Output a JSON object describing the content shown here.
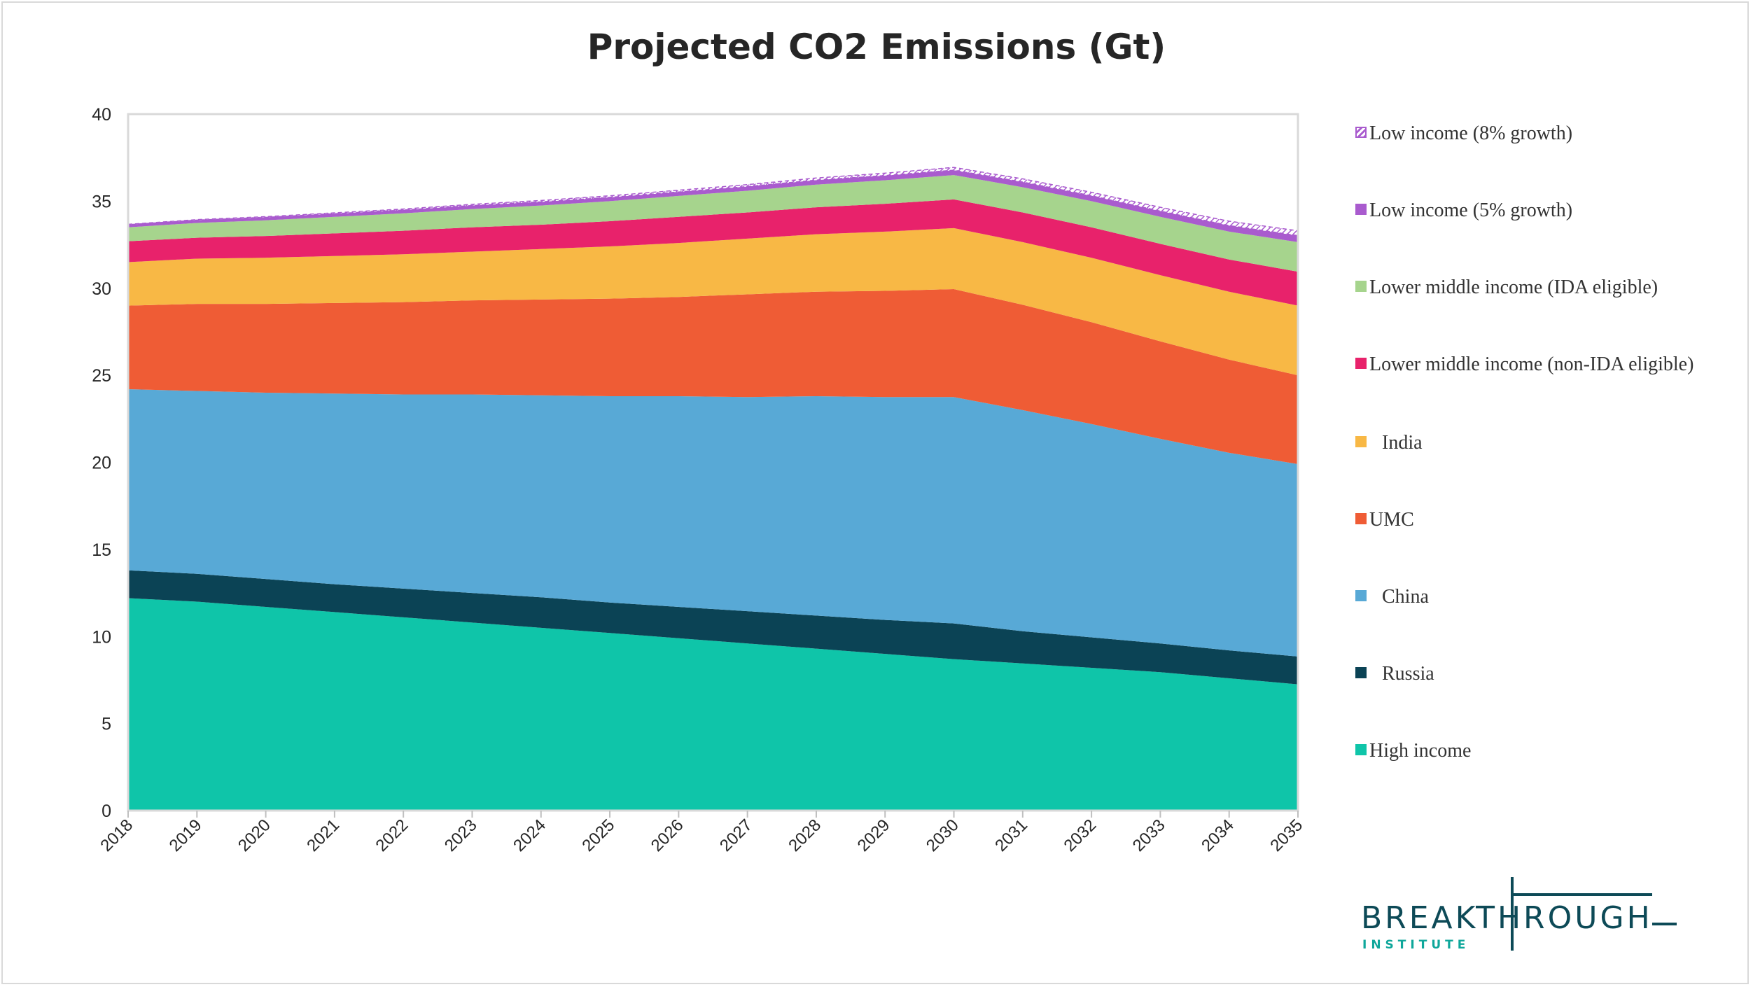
{
  "colors": {
    "high_income": "#0fc5a9",
    "russia": "#0b4355",
    "china": "#58a9d6",
    "umc": "#ef5c35",
    "india": "#f8b845",
    "lmi_non_ida": "#e8226b",
    "lmi_ida": "#a6d48d",
    "low_5": "#a95bce",
    "low_8": "#a95bce"
  },
  "chart_data": {
    "type": "area",
    "stacked": true,
    "title": "Projected CO2 Emissions (Gt)",
    "xlabel": "",
    "ylabel": "",
    "ylim": [
      0,
      40
    ],
    "yticks": [
      "0",
      "5",
      "10",
      "15",
      "20",
      "25",
      "30",
      "35",
      "40"
    ],
    "x": [
      "2018",
      "2019",
      "2020",
      "2021",
      "2022",
      "2023",
      "2024",
      "2025",
      "2026",
      "2027",
      "2028",
      "2029",
      "2030",
      "2031",
      "2032",
      "2033",
      "2034",
      "2035"
    ],
    "grid": false,
    "legend_position": "right",
    "series": [
      {
        "name": "High income",
        "key": "high_income",
        "values": [
          12.2,
          12.0,
          11.7,
          11.4,
          11.1,
          10.8,
          10.5,
          10.2,
          9.9,
          9.6,
          9.3,
          9.0,
          8.7,
          8.45,
          8.2,
          7.95,
          7.6,
          7.25
        ]
      },
      {
        "name": "Russia",
        "key": "russia",
        "values": [
          1.6,
          1.6,
          1.6,
          1.6,
          1.65,
          1.7,
          1.75,
          1.75,
          1.8,
          1.85,
          1.9,
          1.95,
          2.05,
          1.85,
          1.75,
          1.65,
          1.6,
          1.6
        ]
      },
      {
        "name": "China",
        "key": "china",
        "values": [
          10.4,
          10.5,
          10.7,
          10.95,
          11.15,
          11.4,
          11.6,
          11.85,
          12.1,
          12.3,
          12.6,
          12.8,
          13.0,
          12.7,
          12.25,
          11.75,
          11.35,
          11.05
        ]
      },
      {
        "name": "UMC",
        "key": "umc",
        "values": [
          4.8,
          5.0,
          5.1,
          5.2,
          5.3,
          5.4,
          5.5,
          5.6,
          5.7,
          5.9,
          6.0,
          6.1,
          6.2,
          6.05,
          5.85,
          5.6,
          5.35,
          5.1
        ]
      },
      {
        "name": "India",
        "key": "india",
        "values": [
          2.5,
          2.6,
          2.65,
          2.7,
          2.75,
          2.8,
          2.9,
          3.0,
          3.1,
          3.2,
          3.3,
          3.4,
          3.5,
          3.6,
          3.7,
          3.8,
          3.9,
          4.0
        ]
      },
      {
        "name": "Lower middle income (non-IDA eligible)",
        "key": "lmi_non_ida",
        "values": [
          1.2,
          1.2,
          1.25,
          1.3,
          1.35,
          1.4,
          1.4,
          1.45,
          1.5,
          1.5,
          1.55,
          1.6,
          1.65,
          1.7,
          1.75,
          1.8,
          1.85,
          1.95
        ]
      },
      {
        "name": "Lower middle income (IDA eligible)",
        "key": "lmi_ida",
        "values": [
          0.8,
          0.85,
          0.9,
          0.95,
          1.0,
          1.05,
          1.1,
          1.15,
          1.2,
          1.25,
          1.3,
          1.35,
          1.4,
          1.45,
          1.5,
          1.55,
          1.6,
          1.7
        ]
      },
      {
        "name": "Low income (5% growth)",
        "key": "low_5",
        "values": [
          0.15,
          0.16,
          0.17,
          0.18,
          0.19,
          0.2,
          0.21,
          0.22,
          0.23,
          0.24,
          0.26,
          0.27,
          0.28,
          0.3,
          0.31,
          0.33,
          0.35,
          0.37
        ]
      },
      {
        "name": "Low income (8% growth)",
        "key": "low_8",
        "values": [
          0.02,
          0.03,
          0.04,
          0.05,
          0.06,
          0.07,
          0.08,
          0.09,
          0.1,
          0.11,
          0.12,
          0.14,
          0.16,
          0.18,
          0.2,
          0.22,
          0.25,
          0.28
        ],
        "pattern": "hatched"
      }
    ]
  },
  "logo": {
    "main": "BREAKTHROUGH",
    "sub": "INSTITUTE"
  }
}
